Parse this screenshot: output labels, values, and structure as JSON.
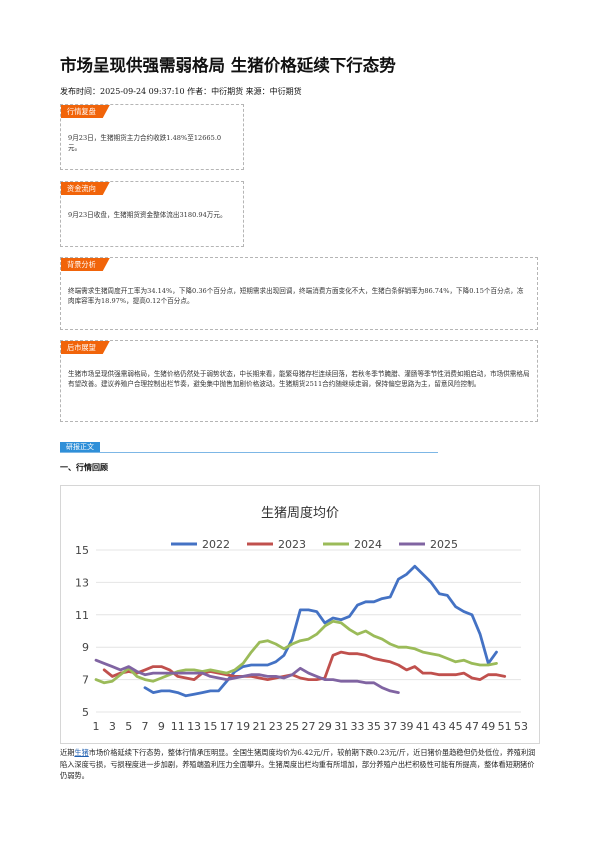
{
  "article": {
    "title": "市场呈现供强需弱格局 生猪价格延续下行态势",
    "meta": "发布时间：2025-09-24 09:37:10 作者：中衍期货 来源：中衍期货"
  },
  "boxes": {
    "market_review": {
      "tag": "行情复盘",
      "text": "9月23日，生猪期货主力合约收跌1.48%至12665.0元。"
    },
    "fund_flow": {
      "tag": "资金流向",
      "text": "9月23日收盘，生猪期货资金整体流出3180.94万元。"
    },
    "background": {
      "tag": "背景分析",
      "text": "终端需求生猪周度开工率为34.14%，下降0.36个百分点，短期需求出现回调，终端消费方面变化不大，生猪白条鲜销率为86.74%，下降0.15个百分点，冻肉库容率为18.97%，提高0.12个百分点。"
    },
    "outlook": {
      "tag": "后市展望",
      "text": "生猪市场呈现供强需弱格局，生猪价格仍然处于弱势状态，中长期来看，能繁母猪存栏连续回落，若秋冬季节腌腊、灌肠等季节性消费如期启动，市场供需格局有望改善。建议养殖户合理控制出栏节奏，避免集中抛售加剧价格波动。生猪期货2511合约随继续走弱，保持偏空思路为主，留意风险控制。"
    }
  },
  "section": {
    "tag": "研报正文",
    "heading": "一、行情回顾"
  },
  "chart_data": {
    "type": "line",
    "title": "生猪周度均价",
    "xlabel": "",
    "ylabel": "",
    "x": [
      1,
      2,
      3,
      4,
      5,
      6,
      7,
      8,
      9,
      10,
      11,
      12,
      13,
      14,
      15,
      16,
      17,
      18,
      19,
      20,
      21,
      22,
      23,
      24,
      25,
      26,
      27,
      28,
      29,
      30,
      31,
      32,
      33,
      34,
      35,
      36,
      37,
      38,
      39,
      40,
      41,
      42,
      43,
      44,
      45,
      46,
      47,
      48,
      49,
      50,
      51,
      52,
      53
    ],
    "ylim": [
      5,
      15
    ],
    "yticks": [
      5,
      7,
      9,
      11,
      13,
      15
    ],
    "xticks": [
      1,
      3,
      5,
      7,
      9,
      11,
      13,
      15,
      17,
      19,
      21,
      23,
      25,
      27,
      29,
      31,
      33,
      35,
      37,
      39,
      41,
      43,
      45,
      47,
      49,
      51,
      53
    ],
    "grid": true,
    "legend_position": "top",
    "series": [
      {
        "name": "2022",
        "color": "#4472c4",
        "values": [
          null,
          null,
          null,
          null,
          null,
          null,
          6.5,
          6.2,
          6.3,
          6.3,
          6.2,
          6.0,
          6.1,
          6.2,
          6.3,
          6.3,
          6.9,
          7.5,
          7.8,
          7.9,
          7.9,
          7.9,
          8.1,
          8.5,
          9.5,
          11.3,
          11.3,
          11.2,
          10.5,
          10.8,
          10.7,
          10.9,
          11.6,
          11.8,
          11.8,
          12.0,
          12.1,
          13.2,
          13.5,
          14.0,
          13.5,
          13.0,
          12.3,
          12.2,
          11.5,
          11.2,
          11.0,
          9.8,
          8.0,
          8.7,
          null,
          null,
          null
        ]
      },
      {
        "name": "2023",
        "color": "#c0504d",
        "values": [
          null,
          7.6,
          7.2,
          7.4,
          7.5,
          7.4,
          7.6,
          7.8,
          7.8,
          7.6,
          7.2,
          7.1,
          7.0,
          7.4,
          7.5,
          7.4,
          7.3,
          7.2,
          7.2,
          7.2,
          7.1,
          7.0,
          7.1,
          7.2,
          7.3,
          7.1,
          7.0,
          7.0,
          7.1,
          8.5,
          8.7,
          8.6,
          8.6,
          8.5,
          8.3,
          8.2,
          8.1,
          7.9,
          7.6,
          7.8,
          7.4,
          7.4,
          7.3,
          7.3,
          7.3,
          7.4,
          7.1,
          7.0,
          7.3,
          7.3,
          7.2,
          null,
          null
        ]
      },
      {
        "name": "2024",
        "color": "#9bbb59",
        "values": [
          7.0,
          6.8,
          6.9,
          7.3,
          7.7,
          7.2,
          7.0,
          6.9,
          7.1,
          7.3,
          7.5,
          7.6,
          7.6,
          7.5,
          7.6,
          7.5,
          7.4,
          7.6,
          8.0,
          8.7,
          9.3,
          9.4,
          9.2,
          8.9,
          9.2,
          9.4,
          9.5,
          9.8,
          10.3,
          10.6,
          10.5,
          10.1,
          9.8,
          10.0,
          9.7,
          9.5,
          9.2,
          9.0,
          9.0,
          8.9,
          8.7,
          8.6,
          8.5,
          8.3,
          8.1,
          8.2,
          8.0,
          7.9,
          7.9,
          8.0,
          null,
          null,
          null
        ]
      },
      {
        "name": "2025",
        "color": "#8064a2",
        "values": [
          8.2,
          8.0,
          7.8,
          7.6,
          7.8,
          7.5,
          7.3,
          7.4,
          7.4,
          7.4,
          7.4,
          7.4,
          7.4,
          7.4,
          7.2,
          7.1,
          7.0,
          7.1,
          7.2,
          7.3,
          7.3,
          7.2,
          7.2,
          7.1,
          7.3,
          7.7,
          7.4,
          7.2,
          7.0,
          7.0,
          6.9,
          6.9,
          6.9,
          6.8,
          6.8,
          6.5,
          6.3,
          6.2,
          null,
          null,
          null,
          null,
          null,
          null,
          null,
          null,
          null,
          null,
          null,
          null,
          null,
          null,
          null
        ]
      }
    ]
  },
  "conclusion": {
    "prefix": "近期",
    "link_text": "生猪",
    "text": "市场价格延续下行态势，整体行情承压明显。全国生猪周度均价为6.42元/斤，较前期下跌0.23元/斤，近日猪价虽趋稳但仍处低位，养殖利润陷入深度亏损，亏损程度进一步加剧，养殖端盈利压力全面攀升。生猪周度出栏均重有所增加，部分养殖户出栏积极性可能有所提高，整体看短期猪价仍弱势。"
  }
}
